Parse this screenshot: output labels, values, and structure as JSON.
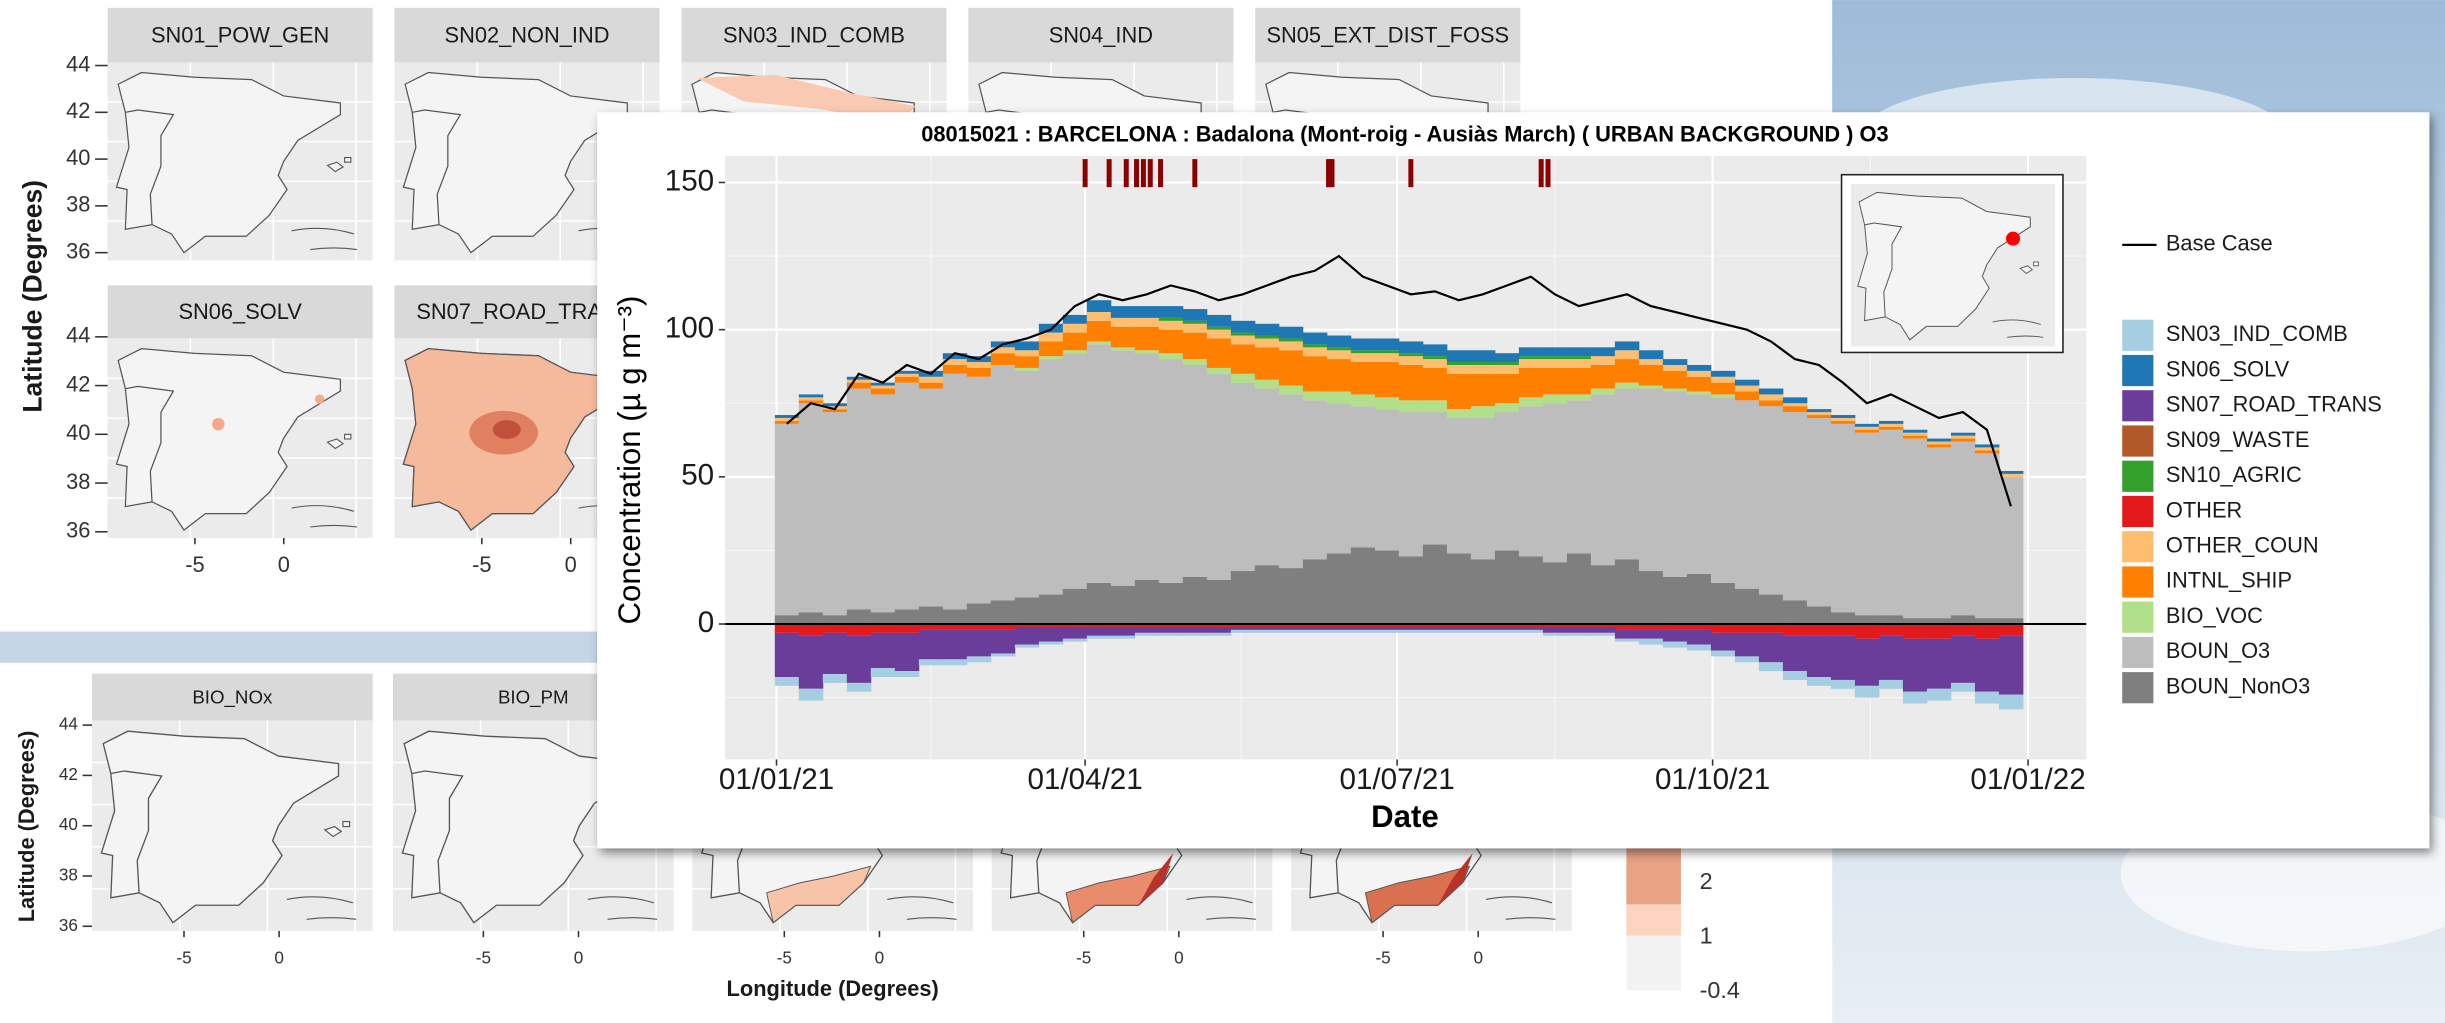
{
  "background": {
    "titles": [
      "SN01_POW_GEN",
      "SN02_NON_IND",
      "SN03_IND_COMB",
      "SN04_IND",
      "SN05_EXT_DIST_FOSS",
      "SN06_SOLV",
      "SN07_ROAD_TRA",
      "BIO_NOx",
      "BIO_PM"
    ],
    "lat_ticks": [
      "44",
      "42",
      "40",
      "38",
      "36"
    ],
    "lon_ticks": [
      "-5",
      "0"
    ],
    "ylabel": "Latitude (Degrees)",
    "xlabel": "Longitude (Degrees)",
    "colorbar_labels": [
      "2",
      "1",
      "-0.4"
    ]
  },
  "chart_data": {
    "type": "bar",
    "stacked": true,
    "title": "08015021 : BARCELONA : Badalona (Mont-roig - Ausiàs March) ( URBAN BACKGROUND ) O3",
    "xlabel": "Date",
    "ylabel": "Concentration (µ g m⁻³)",
    "grid": true,
    "x": [
      "04/01/21",
      "11/01/21",
      "18/01/21",
      "25/01/21",
      "01/02/21",
      "08/02/21",
      "15/02/21",
      "22/02/21",
      "01/03/21",
      "08/03/21",
      "15/03/21",
      "22/03/21",
      "29/03/21",
      "05/04/21",
      "12/04/21",
      "19/04/21",
      "26/04/21",
      "03/05/21",
      "10/05/21",
      "17/05/21",
      "24/05/21",
      "31/05/21",
      "07/06/21",
      "14/06/21",
      "21/06/21",
      "28/06/21",
      "05/07/21",
      "12/07/21",
      "19/07/21",
      "26/07/21",
      "02/08/21",
      "09/08/21",
      "16/08/21",
      "23/08/21",
      "30/08/21",
      "06/09/21",
      "13/09/21",
      "20/09/21",
      "27/09/21",
      "04/10/21",
      "11/10/21",
      "18/10/21",
      "25/10/21",
      "01/11/21",
      "08/11/21",
      "15/11/21",
      "22/11/21",
      "29/11/21",
      "06/12/21",
      "13/12/21",
      "20/12/21",
      "27/12/21"
    ],
    "xlim": [
      "17/12/20",
      "18/01/22"
    ],
    "xticks": [
      "01/01/21",
      "01/04/21",
      "01/07/21",
      "01/10/21",
      "01/01/22"
    ],
    "ylim": [
      -46,
      159
    ],
    "yticks": [
      0,
      50,
      100,
      150
    ],
    "lines": [
      {
        "name": "Base Case",
        "color": "#000000",
        "values": [
          68,
          75,
          73,
          85,
          82,
          88,
          85,
          92,
          90,
          95,
          97,
          100,
          108,
          112,
          110,
          112,
          115,
          113,
          110,
          112,
          115,
          118,
          120,
          125,
          118,
          115,
          112,
          113,
          110,
          112,
          115,
          118,
          112,
          108,
          110,
          112,
          108,
          106,
          104,
          102,
          100,
          96,
          90,
          88,
          82,
          75,
          78,
          74,
          70,
          72,
          66,
          40
        ]
      }
    ],
    "series": [
      {
        "name": "SN03_IND_COMB",
        "color": "#a6cee3",
        "values": [
          -3,
          -4,
          -3,
          -3,
          -3,
          -2,
          -2,
          -2,
          -2,
          -1,
          -1,
          -1,
          -1,
          -1,
          -1,
          -1,
          -1,
          -1,
          -1,
          -1,
          -1,
          -1,
          -1,
          -1,
          -1,
          -1,
          -1,
          -1,
          -1,
          -1,
          -1,
          -1,
          -1,
          -1,
          -1,
          -1,
          -2,
          -2,
          -2,
          -2,
          -2,
          -3,
          -3,
          -3,
          -3,
          -4,
          -3,
          -4,
          -4,
          -3,
          -4,
          -5
        ]
      },
      {
        "name": "SN06_SOLV",
        "color": "#1f78b4",
        "values": [
          1,
          1,
          1,
          1,
          1,
          1,
          2,
          2,
          2,
          2,
          3,
          3,
          3,
          4,
          4,
          4,
          4,
          4,
          4,
          4,
          4,
          4,
          4,
          4,
          4,
          4,
          4,
          4,
          4,
          4,
          3,
          3,
          3,
          3,
          3,
          3,
          3,
          2,
          2,
          2,
          2,
          2,
          2,
          1,
          1,
          1,
          1,
          1,
          1,
          1,
          1,
          1
        ]
      },
      {
        "name": "SN07_ROAD_TRANS",
        "color": "#6a3d9a",
        "values": [
          -15,
          -18,
          -14,
          -16,
          -12,
          -13,
          -10,
          -10,
          -9,
          -8,
          -6,
          -5,
          -4,
          -3,
          -3,
          -2,
          -2,
          -2,
          -2,
          -1,
          -1,
          -1,
          -1,
          -1,
          -1,
          -1,
          -1,
          -1,
          -1,
          -1,
          -1,
          -1,
          -2,
          -2,
          -2,
          -3,
          -3,
          -4,
          -5,
          -6,
          -8,
          -10,
          -12,
          -14,
          -15,
          -16,
          -15,
          -18,
          -17,
          -16,
          -18,
          -20
        ]
      },
      {
        "name": "SN09_WASTE",
        "color": "#b15928",
        "values": [
          0,
          0,
          0,
          0,
          0,
          0,
          0,
          0,
          0,
          0,
          0,
          0,
          0,
          0,
          0,
          0,
          0,
          0,
          0,
          0,
          0,
          0,
          0,
          0,
          0,
          0,
          0,
          0,
          0,
          0,
          0,
          0,
          0,
          0,
          0,
          0,
          0,
          0,
          0,
          0,
          0,
          0,
          0,
          0,
          0,
          0,
          0,
          0,
          0,
          0,
          0,
          0
        ]
      },
      {
        "name": "SN10_AGRIC",
        "color": "#33a02c",
        "values": [
          0,
          0,
          0,
          0,
          0,
          0,
          0,
          0,
          0,
          0,
          0,
          0,
          0,
          0,
          0,
          0,
          1,
          1,
          1,
          1,
          1,
          1,
          1,
          1,
          1,
          1,
          1,
          1,
          1,
          1,
          1,
          1,
          1,
          1,
          0,
          0,
          0,
          0,
          0,
          0,
          0,
          0,
          0,
          0,
          0,
          0,
          0,
          0,
          0,
          0,
          0,
          0
        ]
      },
      {
        "name": "OTHER",
        "color": "#e31a1c",
        "values": [
          -3,
          -4,
          -3,
          -4,
          -3,
          -3,
          -2,
          -2,
          -2,
          -2,
          -1,
          -1,
          -1,
          -1,
          -1,
          -1,
          -1,
          -1,
          -1,
          -1,
          -1,
          -1,
          -1,
          -1,
          -1,
          -1,
          -1,
          -1,
          -1,
          -1,
          -1,
          -1,
          -1,
          -1,
          -1,
          -2,
          -2,
          -2,
          -2,
          -3,
          -3,
          -3,
          -4,
          -4,
          -4,
          -5,
          -4,
          -5,
          -5,
          -4,
          -5,
          -4
        ]
      },
      {
        "name": "OTHER_COUN",
        "color": "#fdbf6f",
        "values": [
          1,
          1,
          1,
          1,
          1,
          1,
          2,
          2,
          2,
          2,
          2,
          3,
          3,
          3,
          3,
          3,
          3,
          3,
          3,
          3,
          3,
          3,
          3,
          3,
          3,
          3,
          3,
          3,
          3,
          3,
          3,
          3,
          3,
          3,
          3,
          3,
          2,
          2,
          2,
          2,
          2,
          2,
          1,
          1,
          1,
          1,
          1,
          1,
          1,
          1,
          1,
          1
        ]
      },
      {
        "name": "INTNL_SHIP",
        "color": "#ff7f00",
        "values": [
          1,
          1,
          1,
          2,
          2,
          2,
          2,
          3,
          3,
          4,
          4,
          5,
          6,
          7,
          7,
          8,
          8,
          9,
          10,
          10,
          11,
          12,
          12,
          11,
          11,
          12,
          12,
          11,
          12,
          11,
          10,
          10,
          9,
          9,
          8,
          8,
          7,
          6,
          5,
          4,
          3,
          2,
          2,
          1,
          1,
          1,
          1,
          1,
          1,
          1,
          1,
          0
        ]
      },
      {
        "name": "BIO_VOC",
        "color": "#b2df8a",
        "values": [
          0,
          0,
          0,
          0,
          0,
          0,
          0,
          0,
          0,
          0,
          1,
          1,
          1,
          1,
          1,
          1,
          2,
          2,
          2,
          3,
          3,
          3,
          3,
          4,
          4,
          4,
          4,
          4,
          3,
          4,
          3,
          3,
          3,
          2,
          2,
          2,
          1,
          1,
          1,
          1,
          0,
          0,
          0,
          0,
          0,
          0,
          0,
          0,
          0,
          0,
          0,
          0
        ]
      },
      {
        "name": "BOUN_O3",
        "color": "#bdbdbd",
        "values": [
          65,
          71,
          69,
          75,
          74,
          77,
          74,
          80,
          77,
          80,
          77,
          80,
          80,
          81,
          80,
          77,
          76,
          72,
          70,
          64,
          60,
          59,
          54,
          51,
          48,
          48,
          49,
          45,
          46,
          48,
          47,
          51,
          54,
          52,
          58,
          58,
          62,
          63,
          61,
          63,
          64,
          64,
          64,
          64,
          64,
          62,
          63,
          61,
          58,
          59,
          56,
          48
        ]
      },
      {
        "name": "BOUN_NonO3",
        "color": "#7f7f7f",
        "values": [
          3,
          4,
          3,
          5,
          4,
          5,
          6,
          5,
          7,
          8,
          9,
          10,
          12,
          14,
          13,
          15,
          14,
          16,
          15,
          18,
          20,
          19,
          22,
          24,
          26,
          25,
          23,
          27,
          24,
          22,
          25,
          23,
          21,
          24,
          20,
          22,
          18,
          16,
          17,
          14,
          12,
          10,
          8,
          6,
          4,
          3,
          3,
          2,
          2,
          3,
          2,
          2
        ]
      }
    ],
    "markers": {
      "color": "#8b0000",
      "x": [
        "01/04/21",
        "08/04/21",
        "13/04/21",
        "16/04/21",
        "18/04/21",
        "20/04/21",
        "23/04/21",
        "03/05/21",
        "11/06/21",
        "12/06/21",
        "05/07/21",
        "12/08/21",
        "14/08/21"
      ]
    }
  }
}
